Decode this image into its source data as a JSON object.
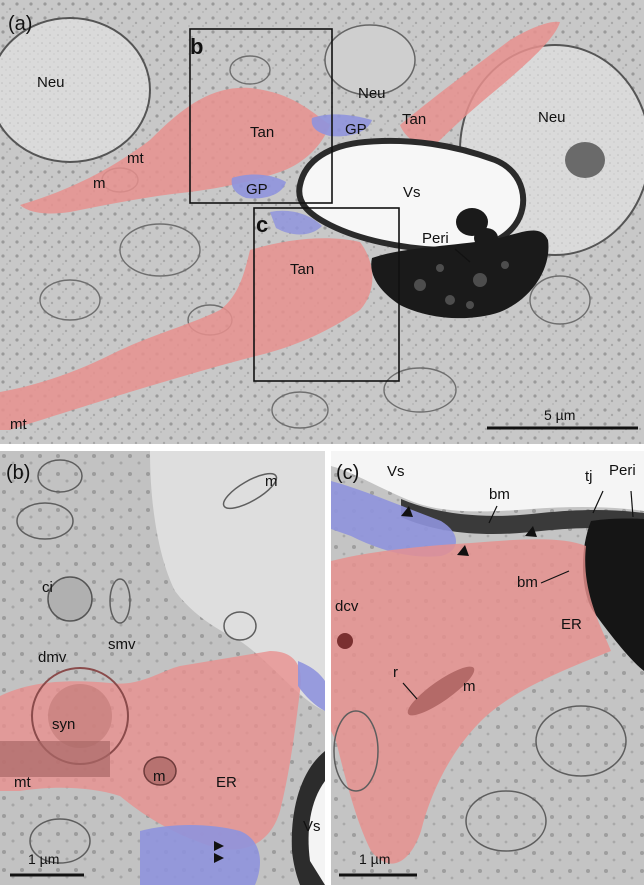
{
  "panel_a": {
    "label": "(a)",
    "inset_b": "b",
    "inset_c": "c",
    "scale_bar": "5 µm",
    "labels": {
      "neu_left": "Neu",
      "neu_top": "Neu",
      "neu_right": "Neu",
      "tan_upper": "Tan",
      "tan_top_right": "Tan",
      "tan_center": "Tan",
      "gp_top": "GP",
      "gp_mid": "GP",
      "vs": "Vs",
      "peri": "Peri",
      "mt_upper": "mt",
      "mt_lower": "mt",
      "m": "m"
    }
  },
  "panel_b": {
    "label": "(b)",
    "scale_bar": "1 µm",
    "labels": {
      "m_top": "m",
      "ci": "ci",
      "smv": "smv",
      "dmv": "dmv",
      "syn": "syn",
      "mt": "mt",
      "m_low": "m",
      "er": "ER",
      "vs": "Vs"
    }
  },
  "panel_c": {
    "label": "(c)",
    "scale_bar": "1 µm",
    "labels": {
      "vs": "Vs",
      "tj": "tj",
      "peri": "Peri",
      "bm_top": "bm",
      "bm_mid": "bm",
      "dcv": "dcv",
      "er": "ER",
      "m": "m",
      "r": "r"
    }
  },
  "colors": {
    "tissue": "#c9c9c9",
    "tanycyte_overlay": "#e8908e",
    "glial_process_overlay": "#8f94dd",
    "pericyte": "#1a1a1a",
    "vessel_lumen": "#f7f7f7"
  }
}
